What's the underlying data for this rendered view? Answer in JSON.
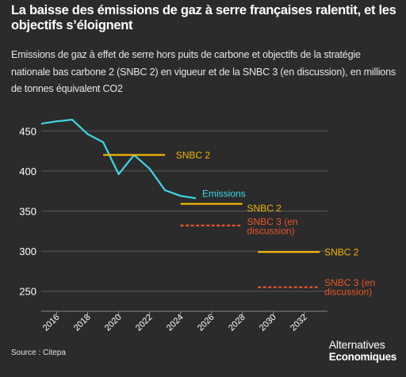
{
  "header": {
    "title": "La baisse des émissions de gaz à serre françaises ralentit, et les objectifs s’éloignent",
    "subtitle": "Emissions de gaz à effet de serre hors puits de carbone et objectifs de la stratégie nationale bas carbone 2 (SNBC 2) en vigueur et de la SNBC 3 (en discussion), en millions de tonnes équivalent CO2"
  },
  "footer": {
    "source": "Source : Citepa",
    "brand_line1": "Alternatives",
    "brand_line2": "Economiques"
  },
  "colors": {
    "background": "#2b2b2b",
    "emissions": "#3fd6e6",
    "snbc2": "#f2b705",
    "snbc3": "#e8562a",
    "grid": "#5a5a5a",
    "text": "#ffffff"
  },
  "chart_data": {
    "type": "line",
    "xlabel": "",
    "ylabel": "",
    "xlim": [
      2015,
      2033.5
    ],
    "ylim": [
      225,
      475
    ],
    "x_ticks": [
      2016,
      2018,
      2020,
      2022,
      2024,
      2026,
      2028,
      2030,
      2032
    ],
    "y_ticks": [
      250,
      300,
      350,
      400,
      450
    ],
    "grid": "horizontal",
    "series": [
      {
        "name": "Emissions",
        "style": "solid",
        "color": "#3fd6e6",
        "x": [
          2015,
          2016,
          2017,
          2018,
          2019,
          2020,
          2021,
          2022,
          2023,
          2024,
          2025
        ],
        "y": [
          459,
          462,
          464,
          446,
          436,
          396,
          420,
          403,
          376,
          369,
          366
        ]
      },
      {
        "name": "SNBC 2",
        "style": "solid",
        "color": "#f2b705",
        "segments": [
          {
            "x": [
              2019,
              2023
            ],
            "y": 420
          },
          {
            "x": [
              2024,
              2028
            ],
            "y": 359
          },
          {
            "x": [
              2029,
              2033
            ],
            "y": 299
          }
        ]
      },
      {
        "name": "SNBC 3 (en discussion)",
        "style": "dashed",
        "color": "#e8562a",
        "segments": [
          {
            "x": [
              2024,
              2028
            ],
            "y": 332
          },
          {
            "x": [
              2029,
              2033
            ],
            "y": 255
          }
        ]
      }
    ],
    "annotations": [
      {
        "label_lines": [
          "SNBC 2"
        ],
        "color": "#f2b705",
        "x": 2023.7,
        "y": 420
      },
      {
        "label_lines": [
          "Emissions"
        ],
        "color": "#3fd6e6",
        "x": 2025.4,
        "y": 372
      },
      {
        "label_lines": [
          "SNBC 2"
        ],
        "color": "#f2b705",
        "x": 2028.3,
        "y": 354
      },
      {
        "label_lines": [
          "SNBC 3 (en",
          "discussion)"
        ],
        "color": "#e8562a",
        "x": 2028.3,
        "y": 337
      },
      {
        "label_lines": [
          "SNBC 2"
        ],
        "color": "#f2b705",
        "x": 2033.3,
        "y": 299
      },
      {
        "label_lines": [
          "SNBC 3 (en",
          "discussion)"
        ],
        "color": "#e8562a",
        "x": 2033.3,
        "y": 261
      }
    ]
  }
}
